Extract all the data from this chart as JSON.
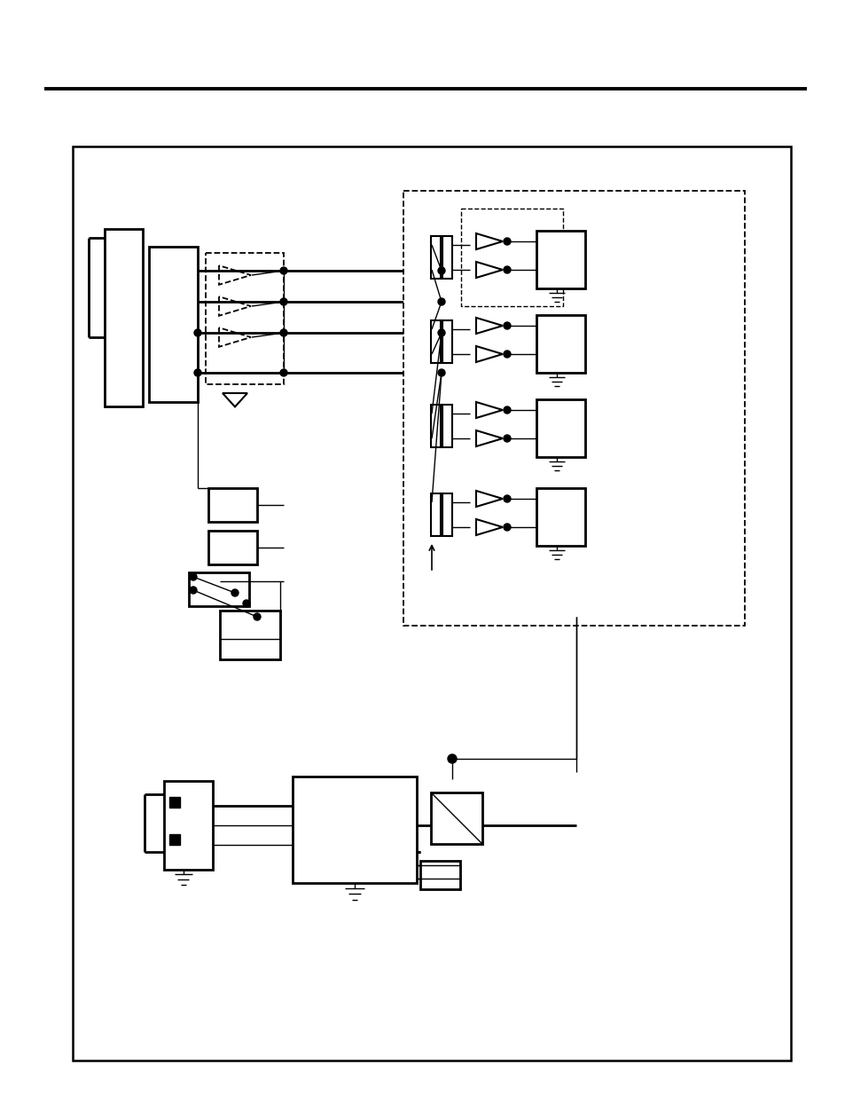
{
  "bg_color": "#ffffff",
  "fig_width": 9.54,
  "fig_height": 12.35,
  "dpi": 100,
  "lw_thin": 1.0,
  "lw_med": 1.5,
  "lw_thick": 2.0,
  "lw_border": 1.8
}
